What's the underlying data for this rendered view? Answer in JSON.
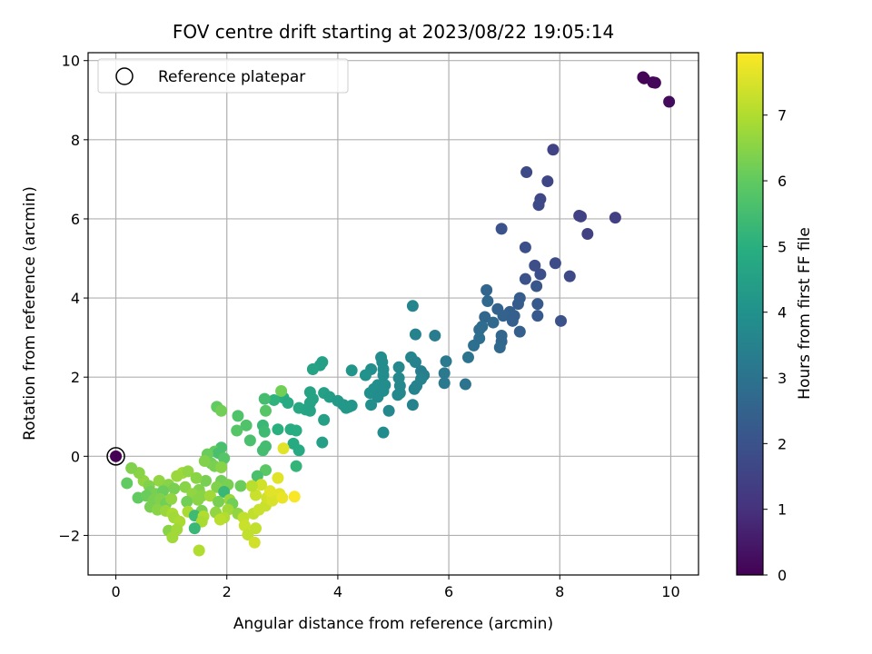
{
  "chart_data": {
    "type": "scatter",
    "title": "FOV centre drift starting at 2023/08/22 19:05:14",
    "xlabel": "Angular distance from reference (arcmin)",
    "ylabel": "Rotation from reference (arcmin)",
    "xlim": [
      -0.5,
      10.5
    ],
    "ylim": [
      -3,
      10.2
    ],
    "xticks": [
      0,
      2,
      4,
      6,
      8,
      10
    ],
    "yticks": [
      -2,
      0,
      2,
      4,
      6,
      8,
      10
    ],
    "grid": true,
    "legend": {
      "position": "top-left",
      "entries": [
        "Reference platepar"
      ]
    },
    "reference_point": {
      "x": 0,
      "y": 0
    },
    "colorbar": {
      "label": "Hours from first FF file",
      "colormap": "viridis",
      "range": [
        0,
        7.95
      ],
      "ticks": [
        0,
        1,
        2,
        3,
        4,
        5,
        6,
        7
      ]
    },
    "points": [
      {
        "x": 9.5,
        "y": 9.58,
        "c": 0.05
      },
      {
        "x": 9.52,
        "y": 9.55,
        "c": 0.08
      },
      {
        "x": 9.68,
        "y": 9.45,
        "c": 0.1
      },
      {
        "x": 9.72,
        "y": 9.44,
        "c": 0.12
      },
      {
        "x": 9.97,
        "y": 8.96,
        "c": 0.2
      },
      {
        "x": 7.88,
        "y": 7.75,
        "c": 1.55
      },
      {
        "x": 7.4,
        "y": 7.18,
        "c": 1.7
      },
      {
        "x": 7.78,
        "y": 6.95,
        "c": 1.6
      },
      {
        "x": 7.65,
        "y": 6.5,
        "c": 1.65
      },
      {
        "x": 7.62,
        "y": 6.35,
        "c": 1.7
      },
      {
        "x": 8.35,
        "y": 6.08,
        "c": 1.5
      },
      {
        "x": 8.38,
        "y": 6.06,
        "c": 1.5
      },
      {
        "x": 9.0,
        "y": 6.03,
        "c": 1.4
      },
      {
        "x": 6.95,
        "y": 5.75,
        "c": 2.0
      },
      {
        "x": 8.5,
        "y": 5.62,
        "c": 1.45
      },
      {
        "x": 7.38,
        "y": 5.28,
        "c": 1.9
      },
      {
        "x": 7.92,
        "y": 4.88,
        "c": 1.8
      },
      {
        "x": 7.55,
        "y": 4.82,
        "c": 1.85
      },
      {
        "x": 7.65,
        "y": 4.6,
        "c": 1.9
      },
      {
        "x": 8.18,
        "y": 4.55,
        "c": 1.75
      },
      {
        "x": 7.38,
        "y": 4.48,
        "c": 2.0
      },
      {
        "x": 7.58,
        "y": 4.3,
        "c": 2.1
      },
      {
        "x": 6.68,
        "y": 4.2,
        "c": 2.6
      },
      {
        "x": 7.28,
        "y": 4.0,
        "c": 2.3
      },
      {
        "x": 6.7,
        "y": 3.92,
        "c": 2.7
      },
      {
        "x": 7.25,
        "y": 3.85,
        "c": 2.3
      },
      {
        "x": 7.6,
        "y": 3.85,
        "c": 2.2
      },
      {
        "x": 5.35,
        "y": 3.8,
        "c": 3.6
      },
      {
        "x": 6.88,
        "y": 3.72,
        "c": 2.5
      },
      {
        "x": 7.1,
        "y": 3.65,
        "c": 2.4
      },
      {
        "x": 7.18,
        "y": 3.55,
        "c": 2.4
      },
      {
        "x": 6.65,
        "y": 3.52,
        "c": 2.6
      },
      {
        "x": 6.98,
        "y": 3.55,
        "c": 2.5
      },
      {
        "x": 7.6,
        "y": 3.55,
        "c": 2.2
      },
      {
        "x": 8.02,
        "y": 3.42,
        "c": 2.0
      },
      {
        "x": 6.8,
        "y": 3.38,
        "c": 2.7
      },
      {
        "x": 7.15,
        "y": 3.42,
        "c": 2.4
      },
      {
        "x": 6.6,
        "y": 3.28,
        "c": 2.8
      },
      {
        "x": 6.55,
        "y": 3.2,
        "c": 2.8
      },
      {
        "x": 7.28,
        "y": 3.15,
        "c": 2.4
      },
      {
        "x": 6.95,
        "y": 3.05,
        "c": 2.6
      },
      {
        "x": 5.4,
        "y": 3.08,
        "c": 3.5
      },
      {
        "x": 5.75,
        "y": 3.05,
        "c": 3.3
      },
      {
        "x": 6.55,
        "y": 2.98,
        "c": 2.85
      },
      {
        "x": 6.95,
        "y": 2.9,
        "c": 2.6
      },
      {
        "x": 6.45,
        "y": 2.8,
        "c": 2.9
      },
      {
        "x": 6.92,
        "y": 2.75,
        "c": 2.7
      },
      {
        "x": 6.35,
        "y": 2.5,
        "c": 3.0
      },
      {
        "x": 4.78,
        "y": 2.5,
        "c": 3.8
      },
      {
        "x": 5.32,
        "y": 2.5,
        "c": 3.6
      },
      {
        "x": 4.8,
        "y": 2.38,
        "c": 3.8
      },
      {
        "x": 5.4,
        "y": 2.38,
        "c": 3.5
      },
      {
        "x": 5.95,
        "y": 2.4,
        "c": 3.2
      },
      {
        "x": 3.72,
        "y": 2.38,
        "c": 4.5
      },
      {
        "x": 3.68,
        "y": 2.3,
        "c": 4.5
      },
      {
        "x": 4.6,
        "y": 2.2,
        "c": 3.9
      },
      {
        "x": 4.82,
        "y": 2.2,
        "c": 3.8
      },
      {
        "x": 5.1,
        "y": 2.25,
        "c": 3.7
      },
      {
        "x": 5.5,
        "y": 2.15,
        "c": 3.4
      },
      {
        "x": 4.25,
        "y": 2.17,
        "c": 4.1
      },
      {
        "x": 3.55,
        "y": 2.2,
        "c": 4.6
      },
      {
        "x": 4.5,
        "y": 2.05,
        "c": 4.0
      },
      {
        "x": 4.82,
        "y": 2.05,
        "c": 3.8
      },
      {
        "x": 5.55,
        "y": 2.05,
        "c": 3.4
      },
      {
        "x": 5.92,
        "y": 2.1,
        "c": 3.2
      },
      {
        "x": 5.1,
        "y": 1.98,
        "c": 3.7
      },
      {
        "x": 5.5,
        "y": 1.95,
        "c": 3.5
      },
      {
        "x": 4.72,
        "y": 1.8,
        "c": 3.9
      },
      {
        "x": 4.85,
        "y": 1.8,
        "c": 3.8
      },
      {
        "x": 5.12,
        "y": 1.78,
        "c": 3.7
      },
      {
        "x": 5.42,
        "y": 1.78,
        "c": 3.5
      },
      {
        "x": 5.92,
        "y": 1.85,
        "c": 3.2
      },
      {
        "x": 6.3,
        "y": 1.82,
        "c": 3.0
      },
      {
        "x": 4.65,
        "y": 1.7,
        "c": 3.9
      },
      {
        "x": 5.38,
        "y": 1.7,
        "c": 3.5
      },
      {
        "x": 4.82,
        "y": 1.65,
        "c": 3.8
      },
      {
        "x": 3.5,
        "y": 1.62,
        "c": 4.6
      },
      {
        "x": 3.75,
        "y": 1.6,
        "c": 4.5
      },
      {
        "x": 4.58,
        "y": 1.6,
        "c": 3.95
      },
      {
        "x": 5.08,
        "y": 1.55,
        "c": 3.7
      },
      {
        "x": 3.85,
        "y": 1.5,
        "c": 4.4
      },
      {
        "x": 4.72,
        "y": 1.5,
        "c": 3.85
      },
      {
        "x": 5.12,
        "y": 1.6,
        "c": 3.7
      },
      {
        "x": 3.02,
        "y": 1.48,
        "c": 4.9
      },
      {
        "x": 3.55,
        "y": 1.45,
        "c": 4.6
      },
      {
        "x": 4.0,
        "y": 1.4,
        "c": 4.3
      },
      {
        "x": 2.85,
        "y": 1.42,
        "c": 5.1
      },
      {
        "x": 3.1,
        "y": 1.35,
        "c": 4.8
      },
      {
        "x": 3.5,
        "y": 1.35,
        "c": 4.6
      },
      {
        "x": 4.1,
        "y": 1.3,
        "c": 4.2
      },
      {
        "x": 4.2,
        "y": 1.25,
        "c": 4.2
      },
      {
        "x": 4.25,
        "y": 1.28,
        "c": 4.15
      },
      {
        "x": 4.6,
        "y": 1.3,
        "c": 3.9
      },
      {
        "x": 5.35,
        "y": 1.3,
        "c": 3.5
      },
      {
        "x": 4.15,
        "y": 1.22,
        "c": 4.2
      },
      {
        "x": 3.3,
        "y": 1.22,
        "c": 4.75
      },
      {
        "x": 3.42,
        "y": 1.18,
        "c": 4.65
      },
      {
        "x": 3.5,
        "y": 1.15,
        "c": 4.6
      },
      {
        "x": 4.92,
        "y": 1.15,
        "c": 3.7
      },
      {
        "x": 2.68,
        "y": 1.45,
        "c": 5.5
      },
      {
        "x": 2.98,
        "y": 1.65,
        "c": 6.2
      },
      {
        "x": 1.82,
        "y": 1.25,
        "c": 6.0
      },
      {
        "x": 1.9,
        "y": 1.15,
        "c": 6.2
      },
      {
        "x": 2.7,
        "y": 1.15,
        "c": 5.8
      },
      {
        "x": 2.2,
        "y": 1.02,
        "c": 5.7
      },
      {
        "x": 3.75,
        "y": 0.92,
        "c": 4.5
      },
      {
        "x": 2.35,
        "y": 0.78,
        "c": 5.7
      },
      {
        "x": 2.65,
        "y": 0.78,
        "c": 5.3
      },
      {
        "x": 2.92,
        "y": 0.68,
        "c": 5.0
      },
      {
        "x": 3.15,
        "y": 0.68,
        "c": 4.9
      },
      {
        "x": 3.25,
        "y": 0.65,
        "c": 4.9
      },
      {
        "x": 2.18,
        "y": 0.65,
        "c": 5.8
      },
      {
        "x": 2.68,
        "y": 0.62,
        "c": 5.4
      },
      {
        "x": 4.82,
        "y": 0.6,
        "c": 3.8
      },
      {
        "x": 2.42,
        "y": 0.4,
        "c": 5.6
      },
      {
        "x": 3.72,
        "y": 0.35,
        "c": 4.5
      },
      {
        "x": 3.2,
        "y": 0.32,
        "c": 4.8
      },
      {
        "x": 2.7,
        "y": 0.25,
        "c": 5.5
      },
      {
        "x": 1.9,
        "y": 0.22,
        "c": 5.6
      },
      {
        "x": 3.02,
        "y": 0.2,
        "c": 7.6
      },
      {
        "x": 2.65,
        "y": 0.15,
        "c": 5.5
      },
      {
        "x": 3.3,
        "y": 0.15,
        "c": 4.8
      },
      {
        "x": 1.78,
        "y": 0.12,
        "c": 6.0
      },
      {
        "x": 1.85,
        "y": 0.08,
        "c": 5.6
      },
      {
        "x": 1.65,
        "y": 0.05,
        "c": 6.1
      },
      {
        "x": 1.95,
        "y": -0.05,
        "c": 5.8
      },
      {
        "x": 1.72,
        "y": -0.18,
        "c": 6.2
      },
      {
        "x": 1.6,
        "y": -0.12,
        "c": 6.4
      },
      {
        "x": 1.78,
        "y": -0.25,
        "c": 6.3
      },
      {
        "x": 1.9,
        "y": -0.28,
        "c": 6.5
      },
      {
        "x": 2.7,
        "y": -0.35,
        "c": 5.9
      },
      {
        "x": 3.25,
        "y": -0.25,
        "c": 5.2
      },
      {
        "x": 2.55,
        "y": -0.5,
        "c": 5.6
      },
      {
        "x": 1.62,
        "y": -0.62,
        "c": 6.3
      },
      {
        "x": 1.9,
        "y": -0.62,
        "c": 6.2
      },
      {
        "x": 2.02,
        "y": -0.72,
        "c": 6.3
      },
      {
        "x": 2.25,
        "y": -0.75,
        "c": 6.1
      },
      {
        "x": 1.82,
        "y": -0.78,
        "c": 6.4
      },
      {
        "x": 1.2,
        "y": -0.42,
        "c": 6.8
      },
      {
        "x": 1.3,
        "y": -0.38,
        "c": 6.6
      },
      {
        "x": 1.45,
        "y": -0.55,
        "c": 6.5
      },
      {
        "x": 1.1,
        "y": -0.5,
        "c": 6.7
      },
      {
        "x": 0.78,
        "y": -0.62,
        "c": 6.6
      },
      {
        "x": 0.95,
        "y": -0.72,
        "c": 6.5
      },
      {
        "x": 0.5,
        "y": -0.62,
        "c": 6.6
      },
      {
        "x": 0.6,
        "y": -0.75,
        "c": 6.4
      },
      {
        "x": 0.42,
        "y": -0.42,
        "c": 6.5
      },
      {
        "x": 0.28,
        "y": -0.3,
        "c": 6.4
      },
      {
        "x": 0.2,
        "y": -0.68,
        "c": 6.0
      },
      {
        "x": 0.62,
        "y": -0.9,
        "c": 6.2
      },
      {
        "x": 0.72,
        "y": -0.95,
        "c": 6.3
      },
      {
        "x": 0.85,
        "y": -0.88,
        "c": 6.1
      },
      {
        "x": 1.05,
        "y": -0.82,
        "c": 6.3
      },
      {
        "x": 1.25,
        "y": -0.78,
        "c": 6.5
      },
      {
        "x": 1.5,
        "y": -0.85,
        "c": 6.4
      },
      {
        "x": 1.38,
        "y": -0.95,
        "c": 6.6
      },
      {
        "x": 1.55,
        "y": -1.0,
        "c": 6.5
      },
      {
        "x": 1.7,
        "y": -1.0,
        "c": 6.8
      },
      {
        "x": 1.95,
        "y": -0.9,
        "c": 5.3
      },
      {
        "x": 2.05,
        "y": -1.1,
        "c": 6.7
      },
      {
        "x": 0.4,
        "y": -1.05,
        "c": 6.0
      },
      {
        "x": 0.55,
        "y": -1.0,
        "c": 6.1
      },
      {
        "x": 0.68,
        "y": -1.1,
        "c": 6.3
      },
      {
        "x": 0.8,
        "y": -1.08,
        "c": 6.4
      },
      {
        "x": 0.9,
        "y": -1.2,
        "c": 6.2
      },
      {
        "x": 1.0,
        "y": -1.08,
        "c": 6.6
      },
      {
        "x": 1.28,
        "y": -1.15,
        "c": 6.2
      },
      {
        "x": 1.48,
        "y": -1.1,
        "c": 6.5
      },
      {
        "x": 1.85,
        "y": -1.15,
        "c": 6.3
      },
      {
        "x": 2.1,
        "y": -1.2,
        "c": 6.2
      },
      {
        "x": 0.62,
        "y": -1.28,
        "c": 6.3
      },
      {
        "x": 0.75,
        "y": -1.35,
        "c": 6.5
      },
      {
        "x": 0.9,
        "y": -1.38,
        "c": 6.7
      },
      {
        "x": 1.02,
        "y": -1.45,
        "c": 6.9
      },
      {
        "x": 1.3,
        "y": -1.4,
        "c": 6.9
      },
      {
        "x": 1.55,
        "y": -1.38,
        "c": 6.3
      },
      {
        "x": 1.8,
        "y": -1.42,
        "c": 6.6
      },
      {
        "x": 2.02,
        "y": -1.35,
        "c": 6.8
      },
      {
        "x": 2.2,
        "y": -1.45,
        "c": 6.6
      },
      {
        "x": 1.95,
        "y": -1.55,
        "c": 7.0
      },
      {
        "x": 1.42,
        "y": -1.5,
        "c": 5.4
      },
      {
        "x": 1.58,
        "y": -1.52,
        "c": 7.0
      },
      {
        "x": 1.05,
        "y": -1.55,
        "c": 6.8
      },
      {
        "x": 1.15,
        "y": -1.65,
        "c": 6.9
      },
      {
        "x": 1.55,
        "y": -1.65,
        "c": 6.9
      },
      {
        "x": 1.88,
        "y": -1.6,
        "c": 7.1
      },
      {
        "x": 2.3,
        "y": -1.55,
        "c": 7.2
      },
      {
        "x": 2.48,
        "y": -1.45,
        "c": 7.2
      },
      {
        "x": 2.58,
        "y": -1.35,
        "c": 7.3
      },
      {
        "x": 2.7,
        "y": -1.25,
        "c": 7.3
      },
      {
        "x": 0.95,
        "y": -1.88,
        "c": 6.5
      },
      {
        "x": 1.42,
        "y": -1.82,
        "c": 5.3
      },
      {
        "x": 1.1,
        "y": -1.85,
        "c": 6.8
      },
      {
        "x": 1.02,
        "y": -2.05,
        "c": 6.8
      },
      {
        "x": 2.32,
        "y": -1.75,
        "c": 7.3
      },
      {
        "x": 2.52,
        "y": -1.82,
        "c": 7.2
      },
      {
        "x": 2.38,
        "y": -1.98,
        "c": 7.2
      },
      {
        "x": 2.5,
        "y": -2.18,
        "c": 7.4
      },
      {
        "x": 1.5,
        "y": -2.38,
        "c": 7.0
      },
      {
        "x": 2.72,
        "y": -1.05,
        "c": 7.4
      },
      {
        "x": 2.85,
        "y": -1.0,
        "c": 7.5
      },
      {
        "x": 2.52,
        "y": -0.98,
        "c": 7.3
      },
      {
        "x": 2.95,
        "y": -0.95,
        "c": 7.6
      },
      {
        "x": 3.22,
        "y": -1.02,
        "c": 7.9
      },
      {
        "x": 2.82,
        "y": -1.12,
        "c": 7.5
      },
      {
        "x": 2.78,
        "y": -0.88,
        "c": 7.6
      },
      {
        "x": 2.92,
        "y": -0.55,
        "c": 7.6
      },
      {
        "x": 2.62,
        "y": -0.72,
        "c": 7.4
      },
      {
        "x": 2.45,
        "y": -0.75,
        "c": 7.1
      },
      {
        "x": 3.0,
        "y": -1.05,
        "c": 7.7
      },
      {
        "x": 0.0,
        "y": 0.0,
        "c": 0.0
      }
    ]
  }
}
